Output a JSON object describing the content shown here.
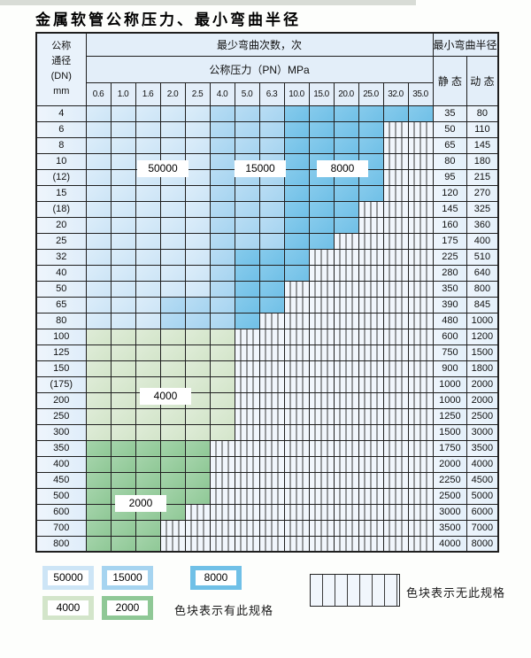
{
  "title": "金属软管公称压力、最小弯曲半径",
  "colors": {
    "blue_50000": "#cde5f6",
    "blue_15000": "#a6d4f0",
    "blue_8000": "#70c0e7",
    "green_4000": "#d3e5ca",
    "green_2000": "#8fc896",
    "hatch_bg": "#f1f6fc"
  },
  "table": {
    "corner": {
      "line1": "公称",
      "line2": "通径",
      "line3": "(DN)",
      "line4": "mm"
    },
    "bend_header": "最少弯曲次数，次",
    "pressure_header": "公称压力（PN）MPa",
    "radius_header": "最小弯曲半径",
    "static_label": "静 态",
    "dynamic_label": "动 态",
    "pressures": [
      "0.6",
      "1.0",
      "1.6",
      "2.0",
      "2.5",
      "4.0",
      "5.0",
      "6.3",
      "10.0",
      "15.0",
      "20.0",
      "25.0",
      "32.0",
      "35.0"
    ],
    "cell_code_legend": "L=50000 light blue, M=15000 medium blue, D=8000 dark blue, G=4000 light green, E=2000 dark green, X=no specification (hatched)",
    "rows": [
      {
        "dn": "4",
        "cells": "LLLLLMMMDDDDDD",
        "static": "35",
        "dynamic": "80"
      },
      {
        "dn": "6",
        "cells": "LLLLLMMMDDDDXX",
        "static": "50",
        "dynamic": "110"
      },
      {
        "dn": "8",
        "cells": "LLLLLMMMDDDDXX",
        "static": "65",
        "dynamic": "145"
      },
      {
        "dn": "10",
        "cells": "LLLLLMMMDDDDXX",
        "static": "80",
        "dynamic": "180"
      },
      {
        "dn": "(12)",
        "cells": "LLLLLMMMDDDDXX",
        "static": "95",
        "dynamic": "215"
      },
      {
        "dn": "15",
        "cells": "LLLLLMMMDDDDXX",
        "static": "120",
        "dynamic": "270"
      },
      {
        "dn": "(18)",
        "cells": "LLLLLMMMDDDXXX",
        "static": "145",
        "dynamic": "325"
      },
      {
        "dn": "20",
        "cells": "LLLLLMMMDDDXXX",
        "static": "160",
        "dynamic": "360"
      },
      {
        "dn": "25",
        "cells": "LLLLLMMMDDXXXX",
        "static": "175",
        "dynamic": "400"
      },
      {
        "dn": "32",
        "cells": "LLLLLMDDDXXXXX",
        "static": "225",
        "dynamic": "510"
      },
      {
        "dn": "40",
        "cells": "LLLLLMDDDXXXXX",
        "static": "280",
        "dynamic": "640"
      },
      {
        "dn": "50",
        "cells": "LLLLLMDDXXXXXX",
        "static": "350",
        "dynamic": "800"
      },
      {
        "dn": "65",
        "cells": "LLLMMMDDXXXXXX",
        "static": "390",
        "dynamic": "845"
      },
      {
        "dn": "80",
        "cells": "LLLMMMDXXXXXXX",
        "static": "480",
        "dynamic": "1000"
      },
      {
        "dn": "100",
        "cells": "GGGGGGXXXXXXXX",
        "static": "600",
        "dynamic": "1200"
      },
      {
        "dn": "125",
        "cells": "GGGGGGXXXXXXXX",
        "static": "750",
        "dynamic": "1500"
      },
      {
        "dn": "150",
        "cells": "GGGGGGXXXXXXXX",
        "static": "900",
        "dynamic": "1800"
      },
      {
        "dn": "(175)",
        "cells": "GGGGGGXXXXXXXX",
        "static": "1000",
        "dynamic": "2000"
      },
      {
        "dn": "200",
        "cells": "GGGGGGXXXXXXXX",
        "static": "1000",
        "dynamic": "2000"
      },
      {
        "dn": "250",
        "cells": "GGGGGGXXXXXXXX",
        "static": "1250",
        "dynamic": "2500"
      },
      {
        "dn": "300",
        "cells": "GGGGGGXXXXXXXX",
        "static": "1500",
        "dynamic": "3000"
      },
      {
        "dn": "350",
        "cells": "EEEEEXXXXXXXXX",
        "static": "1750",
        "dynamic": "3500"
      },
      {
        "dn": "400",
        "cells": "EEEEEXXXXXXXXX",
        "static": "2000",
        "dynamic": "4000"
      },
      {
        "dn": "450",
        "cells": "EEEEEXXXXXXXXX",
        "static": "2250",
        "dynamic": "4500"
      },
      {
        "dn": "500",
        "cells": "EEEEEXXXXXXXXX",
        "static": "2500",
        "dynamic": "5000"
      },
      {
        "dn": "600",
        "cells": "EEEEXXXXXXXXXX",
        "static": "3000",
        "dynamic": "6000"
      },
      {
        "dn": "700",
        "cells": "EEEXXXXXXXXXXX",
        "static": "3500",
        "dynamic": "7000"
      },
      {
        "dn": "800",
        "cells": "EEEXXXXXXXXXXX",
        "static": "4000",
        "dynamic": "8000"
      }
    ]
  },
  "overlays": {
    "v50000": "50000",
    "v15000": "15000",
    "v8000": "8000",
    "v4000": "4000",
    "v2000": "2000"
  },
  "legend": {
    "swatch_50000": "50000",
    "swatch_15000": "15000",
    "swatch_8000": "8000",
    "swatch_4000": "4000",
    "swatch_2000": "2000",
    "have_text": "色块表示有此规格",
    "none_text": "色块表示无此规格"
  }
}
